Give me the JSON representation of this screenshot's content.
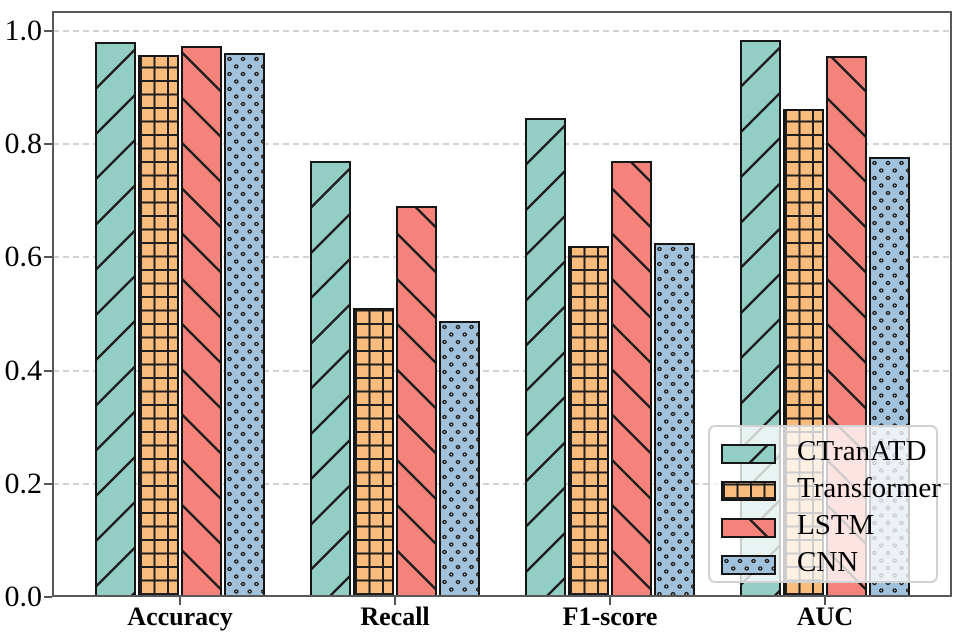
{
  "chart_data": {
    "type": "bar",
    "title": "",
    "xlabel": "",
    "ylabel": "",
    "categories": [
      "Accuracy",
      "Recall",
      "F1-score",
      "AUC"
    ],
    "series": [
      {
        "name": "CTranATD",
        "color": "#92CEC4",
        "hatch": "/",
        "values": [
          0.981,
          0.771,
          0.846,
          0.984
        ]
      },
      {
        "name": "Transformer",
        "color": "#F9BC7C",
        "hatch": "+",
        "values": [
          0.958,
          0.511,
          0.621,
          0.862
        ]
      },
      {
        "name": "LSTM",
        "color": "#F5837B",
        "hatch": "\\",
        "values": [
          0.973,
          0.69,
          0.771,
          0.955
        ]
      },
      {
        "name": "CNN",
        "color": "#A2C1DB",
        "hatch": "o",
        "values": [
          0.961,
          0.487,
          0.626,
          0.778
        ]
      }
    ],
    "yticks": [
      "0.0",
      "0.2",
      "0.4",
      "0.6",
      "0.8",
      "1.0"
    ],
    "ytick_values": [
      0,
      0.2,
      0.4,
      0.6,
      0.8,
      1.0
    ],
    "ylim": [
      0,
      1.035
    ],
    "grid": "horizontal-dashed",
    "legend": {
      "position": "lower right",
      "entries": [
        "CTranATD",
        "Transformer",
        "LSTM",
        "CNN"
      ]
    },
    "colors": {
      "hatch": "#1f1f1f",
      "bar_edge": "#161616",
      "gridline": "#d2d2d2",
      "spine": "#58585a",
      "text": "#000000"
    }
  }
}
